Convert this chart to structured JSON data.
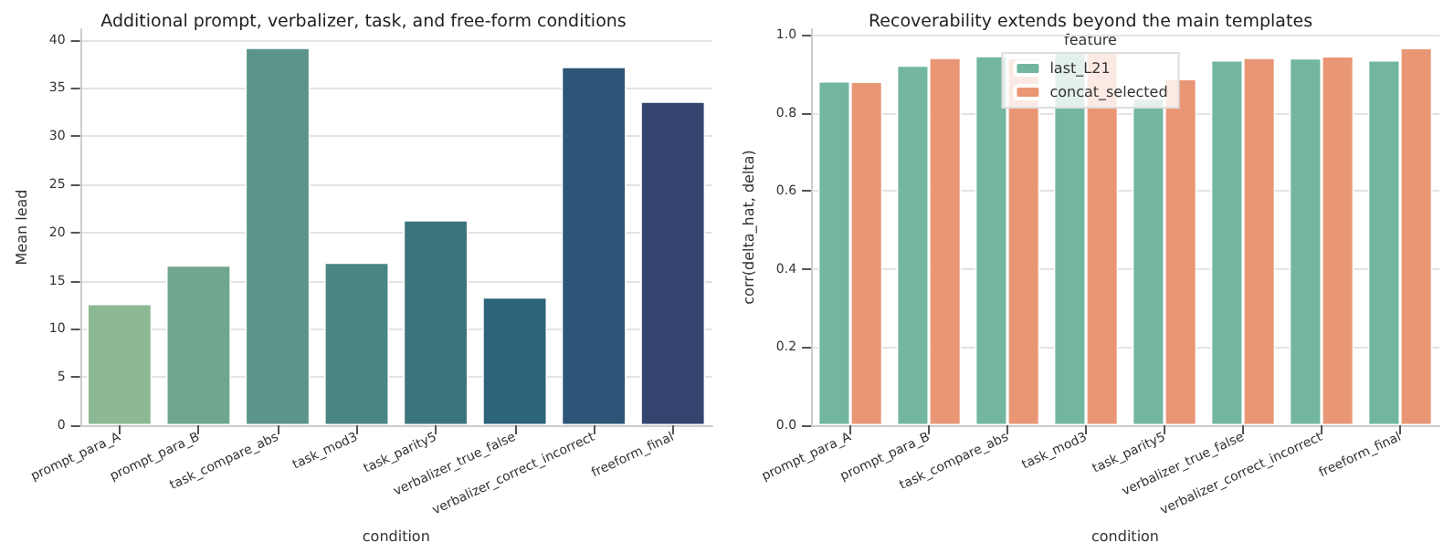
{
  "chart_data": [
    {
      "type": "bar",
      "title": "Additional prompt, verbalizer, task, and free-form conditions",
      "xlabel": "condition",
      "ylabel": "Mean lead",
      "categories": [
        "prompt_para_A",
        "prompt_para_B",
        "task_compare_abs",
        "task_mod3",
        "task_parity5",
        "verbalizer_true_false",
        "verbalizer_correct_incorrect",
        "freeform_final"
      ],
      "values": [
        12.6,
        16.6,
        39.2,
        16.9,
        21.3,
        13.3,
        37.2,
        33.6
      ],
      "colors": [
        "#8cb994",
        "#6fa68d",
        "#5b948a",
        "#488583",
        "#3c747d",
        "#2d6479",
        "#2d5577",
        "#33456f"
      ],
      "ylim": [
        0,
        41.1
      ],
      "yticks": [
        0,
        5,
        10,
        15,
        20,
        25,
        30,
        35,
        40
      ],
      "grid": "y",
      "legend": false
    },
    {
      "type": "bar",
      "title": "Recoverability extends beyond the main templates",
      "xlabel": "condition",
      "ylabel": "corr(delta_hat, delta)",
      "legend_title": "feature",
      "categories": [
        "prompt_para_A",
        "prompt_para_B",
        "task_compare_abs",
        "task_mod3",
        "task_parity5",
        "verbalizer_true_false",
        "verbalizer_correct_incorrect",
        "freeform_final"
      ],
      "series": [
        {
          "name": "last_L21",
          "color": "#72b6a1",
          "values": [
            0.882,
            0.922,
            0.947,
            0.96,
            0.838,
            0.936,
            0.941,
            0.936
          ]
        },
        {
          "name": "concat_selected",
          "color": "#e99675",
          "values": [
            0.881,
            0.942,
            0.941,
            0.96,
            0.888,
            0.942,
            0.946,
            0.967
          ]
        }
      ],
      "ylim": [
        0,
        1.015
      ],
      "yticks": [
        {
          "value": 0,
          "label": "0.0"
        },
        0.2,
        0.4,
        0.6,
        0.8,
        {
          "value": 1,
          "label": "1.0"
        }
      ],
      "grid": "y",
      "legend": "top"
    }
  ]
}
